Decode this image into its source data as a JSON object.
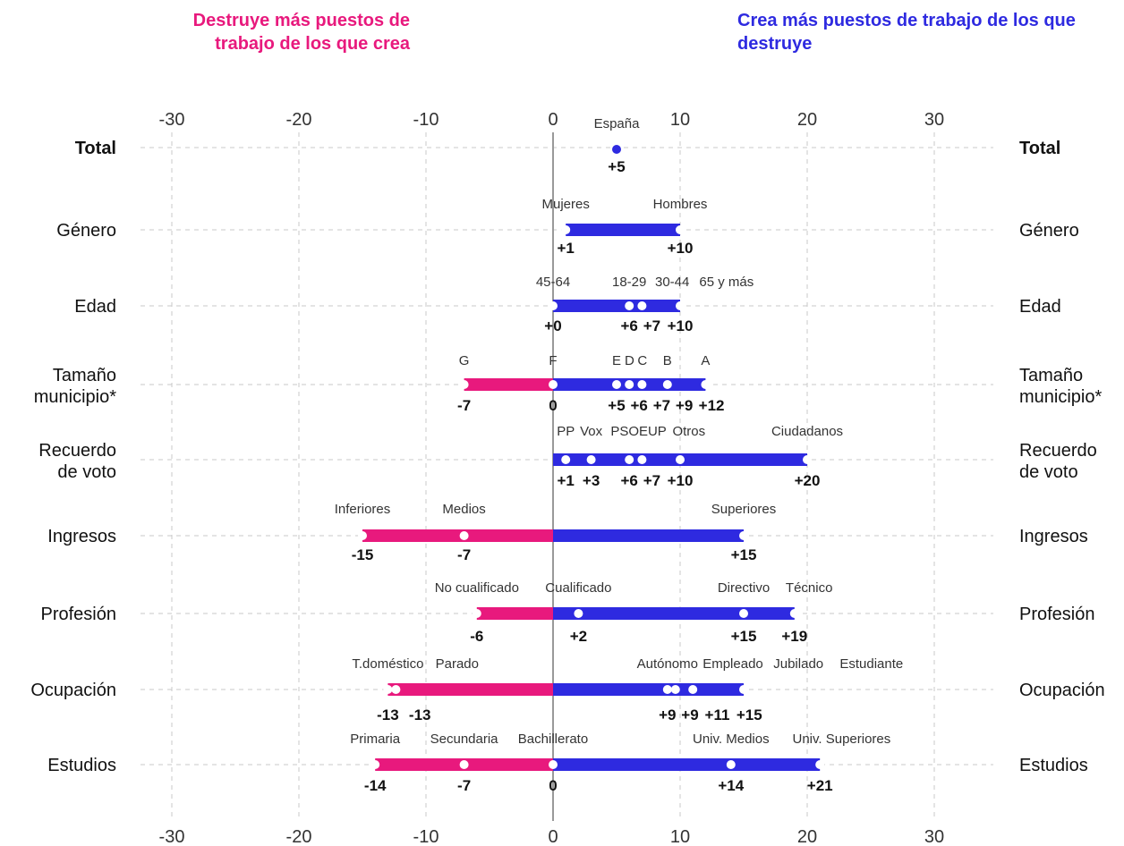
{
  "header": {
    "left_title": "Destruye más puestos de trabajo de los que crea",
    "right_title": "Crea más puestos de trabajo de los que destruye"
  },
  "colors": {
    "negative": "#e8197d",
    "positive": "#2e2ae0",
    "zero_line": "#999999",
    "grid": "#c8c8c8"
  },
  "chart_data": {
    "type": "dot-range",
    "xlim": [
      -30,
      30
    ],
    "x_ticks": [
      "-30",
      "-20",
      "-10",
      "0",
      "10",
      "20",
      "30"
    ],
    "grid": true,
    "rows": [
      {
        "label": "Total",
        "bold": true,
        "range": null,
        "points": [
          {
            "name": "España",
            "x": 5,
            "label": "+5"
          }
        ]
      },
      {
        "label": "Género",
        "range": [
          1,
          10
        ],
        "points": [
          {
            "name": "Mujeres",
            "x": 1,
            "label": "+1"
          },
          {
            "name": "Hombres",
            "x": 10,
            "label": "+10"
          }
        ]
      },
      {
        "label": "Edad",
        "range": [
          0,
          10
        ],
        "points": [
          {
            "name": "45-64",
            "x": 0,
            "label": "+0"
          },
          {
            "name": "18-29",
            "x": 6,
            "label": "+6"
          },
          {
            "name": "30-44",
            "x": 7,
            "label": "+7"
          },
          {
            "name": "65 y más",
            "x": 10,
            "label": "+10"
          }
        ]
      },
      {
        "label": "Tamaño municipio*",
        "range": [
          -7,
          12
        ],
        "points": [
          {
            "name": "G",
            "x": -7,
            "label": "-7"
          },
          {
            "name": "F",
            "x": 0,
            "label": "0"
          },
          {
            "name": "E",
            "x": 5,
            "label": "+5"
          },
          {
            "name": "D",
            "x": 6,
            "label": "+6"
          },
          {
            "name": "C",
            "x": 7,
            "label": "+7"
          },
          {
            "name": "B",
            "x": 9,
            "label": "+9"
          },
          {
            "name": "A",
            "x": 12,
            "label": "+12"
          }
        ]
      },
      {
        "label": "Recuerdo de voto",
        "range": [
          0,
          20
        ],
        "points": [
          {
            "name": "PP",
            "x": 1,
            "label": "+1"
          },
          {
            "name": "Vox",
            "x": 3,
            "label": "+3"
          },
          {
            "name": "PSOE",
            "x": 6,
            "label": "+6"
          },
          {
            "name": "UP",
            "x": 7,
            "label": "+7"
          },
          {
            "name": "Otros",
            "x": 10,
            "label": "+10"
          },
          {
            "name": "Ciudadanos",
            "x": 20,
            "label": "+20"
          }
        ]
      },
      {
        "label": "Ingresos",
        "range": [
          -15,
          15
        ],
        "points": [
          {
            "name": "Inferiores",
            "x": -15,
            "label": "-15"
          },
          {
            "name": "Medios",
            "x": -7,
            "label": "-7"
          },
          {
            "name": "Superiores",
            "x": 15,
            "label": "+15"
          }
        ]
      },
      {
        "label": "Profesión",
        "range": [
          -6,
          19
        ],
        "points": [
          {
            "name": "No cualificado",
            "x": -6,
            "label": "-6"
          },
          {
            "name": "Cualificado",
            "x": 2,
            "label": "+2"
          },
          {
            "name": "Directivo",
            "x": 15,
            "label": "+15"
          },
          {
            "name": "Técnico",
            "x": 19,
            "label": "+19"
          }
        ]
      },
      {
        "label": "Ocupación",
        "range": [
          -13,
          15
        ],
        "points": [
          {
            "name": "T.doméstico",
            "x": -13,
            "label": "-13"
          },
          {
            "name": "Parado",
            "x": -13,
            "label": "-13"
          },
          {
            "name": "Autónomo",
            "x": 9,
            "label": "+9"
          },
          {
            "name": "Empleado",
            "x": 9,
            "label": "+9"
          },
          {
            "name": "Jubilado",
            "x": 11,
            "label": "+11"
          },
          {
            "name": "Estudiante",
            "x": 15,
            "label": "+15"
          }
        ]
      },
      {
        "label": "Estudios",
        "range": [
          -14,
          21
        ],
        "points": [
          {
            "name": "Primaria",
            "x": -14,
            "label": "-14"
          },
          {
            "name": "Secundaria",
            "x": -7,
            "label": "-7"
          },
          {
            "name": "Bachillerato",
            "x": 0,
            "label": "0"
          },
          {
            "name": "Univ. Medios",
            "x": 14,
            "label": "+14"
          },
          {
            "name": "Univ. Superiores",
            "x": 21,
            "label": "+21"
          }
        ]
      }
    ]
  }
}
